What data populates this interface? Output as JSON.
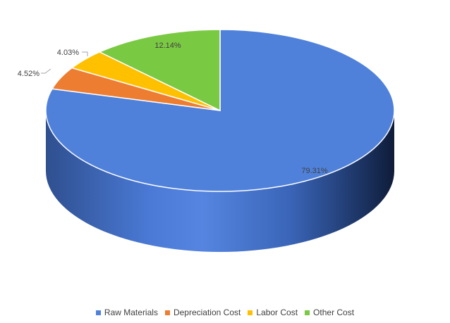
{
  "chart_data": {
    "type": "pie",
    "style": "3d",
    "categories": [
      "Raw Materials",
      "Depreciation Cost",
      "Labor Cost",
      "Other Cost"
    ],
    "values": [
      79.31,
      4.52,
      4.03,
      12.14
    ],
    "data_labels": [
      "79.31%",
      "4.52%",
      "4.03%",
      "12.14%"
    ],
    "colors": [
      "#4f81db",
      "#ed7d31",
      "#ffc000",
      "#7ac943"
    ],
    "legend_position": "bottom",
    "title": ""
  }
}
